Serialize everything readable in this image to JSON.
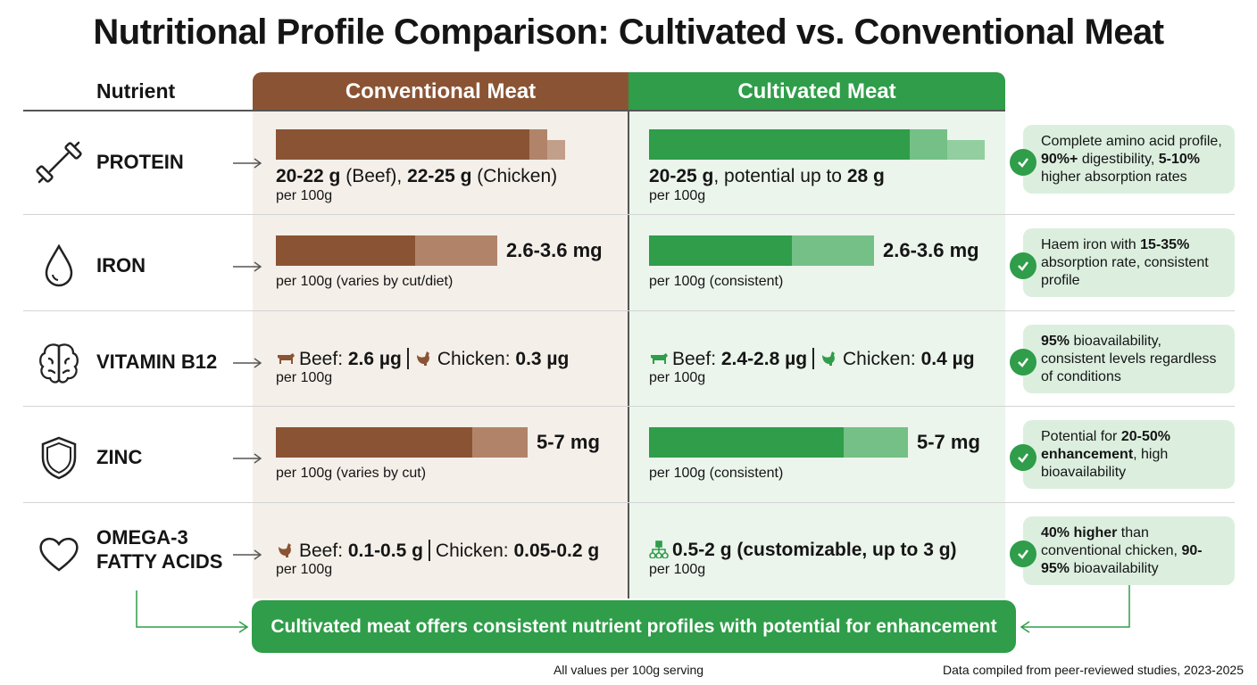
{
  "title": "Nutritional Profile Comparison: Cultivated vs. Conventional Meat",
  "headers": {
    "nutrient": "Nutrient",
    "conventional": "Conventional Meat",
    "cultivated": "Cultivated Meat"
  },
  "colors": {
    "conventional": "#8a5434",
    "conventional_light": "#b1846a",
    "cultivated": "#2f9d49",
    "cultivated_light": "#74c086",
    "note_bg": "#dcefdf"
  },
  "rows": [
    {
      "nutrient": "PROTEIN",
      "icon": "dumbbell-icon",
      "conventional": {
        "bar": {
          "solid": 0.71,
          "range": 0.05,
          "extended": 0.05
        },
        "main": [
          {
            "t": "20-22 g",
            "b": true
          },
          {
            "t": " (Beef), "
          },
          {
            "t": "22-25 g",
            "b": true
          },
          {
            "t": " (Chicken)"
          }
        ],
        "sub": "per 100g"
      },
      "cultivated": {
        "bar": {
          "solid": 0.73,
          "range": 0.105,
          "extended": 0.105
        },
        "main": [
          {
            "t": "20-25 g",
            "b": true
          },
          {
            "t": ", potential up to "
          },
          {
            "t": "28 g",
            "b": true
          }
        ],
        "sub": "per 100g"
      },
      "note": [
        {
          "t": "Complete amino acid profile, "
        },
        {
          "t": "90%+",
          "b": true
        },
        {
          "t": " digestibility, "
        },
        {
          "t": "5-10%",
          "b": true
        },
        {
          "t": " higher absorption rates"
        }
      ]
    },
    {
      "nutrient": "IRON",
      "icon": "water-drop-icon",
      "conventional": {
        "bar": {
          "solid": 0.39,
          "range": 0.23
        },
        "value": "2.6-3.6 mg",
        "sub": "per 100g (varies by cut/diet)"
      },
      "cultivated": {
        "bar": {
          "solid": 0.4,
          "range": 0.23
        },
        "value": "2.6-3.6 mg",
        "sub": "per 100g (consistent)"
      },
      "note": [
        {
          "t": "Haem iron with "
        },
        {
          "t": "15-35%",
          "b": true
        },
        {
          "t": " absorption rate, consistent profile"
        }
      ]
    },
    {
      "nutrient": "VITAMIN B12",
      "icon": "brain-icon",
      "conventional": {
        "main": [
          {
            "i": "cow"
          },
          {
            "t": "Beef: "
          },
          {
            "t": "2.6 µg",
            "b": true
          },
          {
            "sep": true
          },
          {
            "i": "chicken"
          },
          {
            "t": "Chicken: "
          },
          {
            "t": "0.3 µg",
            "b": true
          }
        ],
        "sub": "per 100g"
      },
      "cultivated": {
        "main": [
          {
            "i": "cow"
          },
          {
            "t": "Beef: "
          },
          {
            "t": "2.4-2.8 µg",
            "b": true
          },
          {
            "sep": true
          },
          {
            "i": "chicken"
          },
          {
            "t": "Chicken: "
          },
          {
            "t": "0.4 µg",
            "b": true
          }
        ],
        "sub": "per 100g"
      },
      "note": [
        {
          "t": "95%",
          "b": true
        },
        {
          "t": " bioavailability, consistent levels regardless of conditions"
        }
      ]
    },
    {
      "nutrient": "ZINC",
      "icon": "shield-icon",
      "conventional": {
        "bar": {
          "solid": 0.55,
          "range": 0.155
        },
        "value": "5-7 mg",
        "sub": "per 100g (varies by cut)"
      },
      "cultivated": {
        "bar": {
          "solid": 0.545,
          "range": 0.18
        },
        "value": "5-7 mg",
        "sub": "per 100g (consistent)"
      },
      "note": [
        {
          "t": "Potential for "
        },
        {
          "t": "20-50% enhancement",
          "b": true
        },
        {
          "t": ", high bioavailability"
        }
      ]
    },
    {
      "nutrient": "OMEGA-3 FATTY ACIDS",
      "icon": "heart-icon",
      "conventional": {
        "main": [
          {
            "i": "chicken"
          },
          {
            "t": "Beef: "
          },
          {
            "t": "0.1-0.5 g",
            "b": true
          },
          {
            "sep": true
          },
          {
            "t": "Chicken: "
          },
          {
            "t": "0.05-0.2 g",
            "b": true
          }
        ],
        "sub": "per 100g"
      },
      "cultivated": {
        "main": [
          {
            "i": "cells"
          },
          {
            "t": "0.5-2 g (customizable, up to 3 g)",
            "b": true
          }
        ],
        "sub": "per 100g"
      },
      "note": [
        {
          "t": "40% higher",
          "b": true
        },
        {
          "t": " than conventional chicken, "
        },
        {
          "t": "90-95%",
          "b": true
        },
        {
          "t": " bioavailability"
        }
      ]
    }
  ],
  "banner": "Cultivated meat offers consistent nutrient profiles with potential for enhancement",
  "footer": {
    "center": "All values per 100g serving",
    "right": "Data compiled from peer-reviewed studies, 2023-2025"
  }
}
